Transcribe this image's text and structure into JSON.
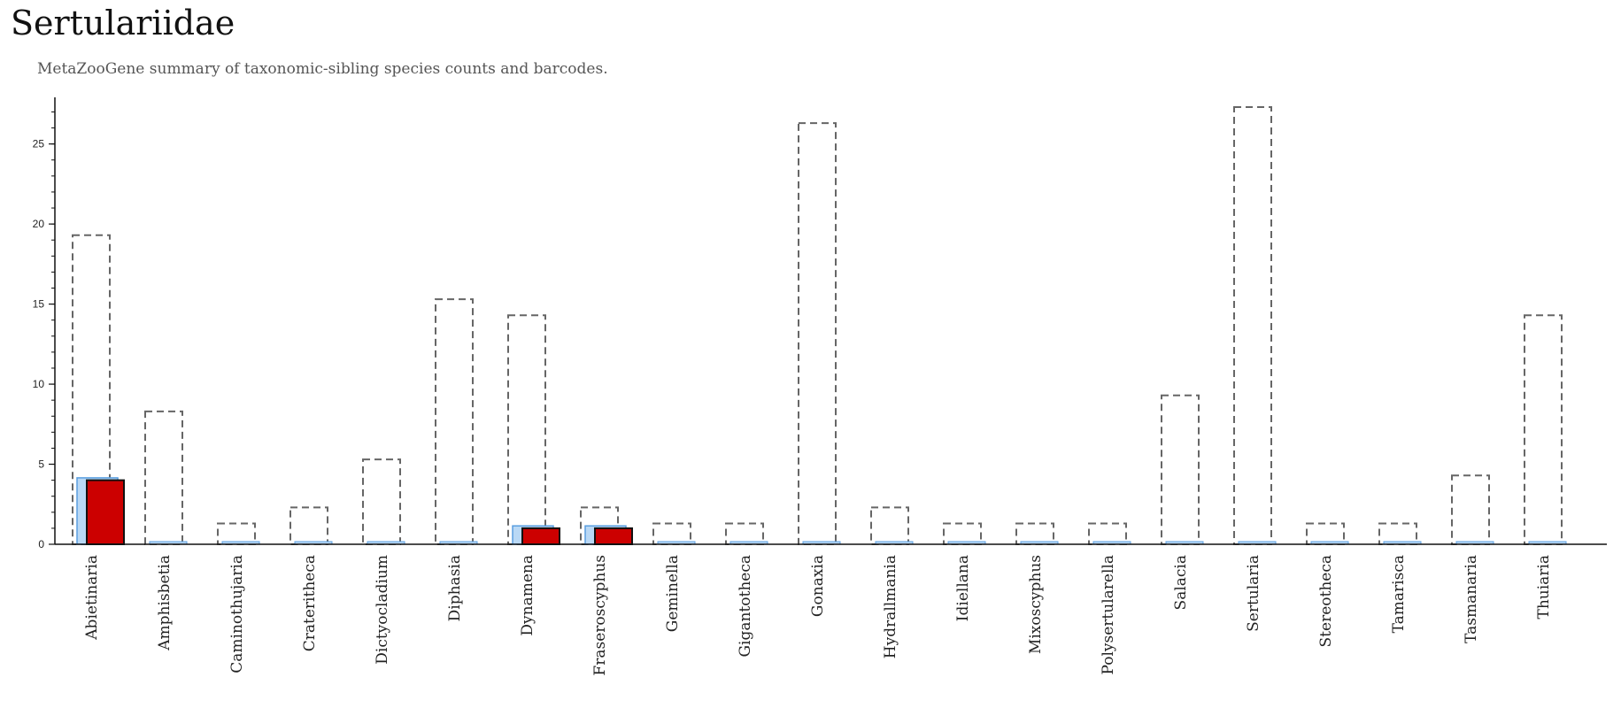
{
  "title": "Sertulariidae",
  "subtitle": "MetaZooGene summary of taxonomic-sibling species counts and barcodes.",
  "colors": {
    "outline": "#666666",
    "light_bar_fill": "#b9d8f5",
    "light_bar_stroke": "#5a9ee0",
    "red_bar_fill": "#cc0000",
    "red_bar_stroke": "#111111",
    "axis": "#111111"
  },
  "chart_data": {
    "type": "bar",
    "categories": [
      "Abietinaria",
      "Amphisbetia",
      "Caminothujaria",
      "Crateritheca",
      "Dictyocladium",
      "Diphasia",
      "Dynamena",
      "Fraseroscyphus",
      "Geminella",
      "Gigantotheca",
      "Gonaxia",
      "Hydrallmania",
      "Idiellana",
      "Mixoscyphus",
      "Polysertularella",
      "Salacia",
      "Sertularia",
      "Stereotheca",
      "Tamarisca",
      "Tasmanaria",
      "Thuiaria"
    ],
    "series": [
      {
        "values": [
          19,
          8,
          1,
          2,
          5,
          15,
          14,
          2,
          1,
          1,
          26,
          2,
          1,
          1,
          1,
          9,
          27,
          1,
          1,
          4,
          14
        ]
      },
      {
        "values": [
          4,
          0,
          0,
          0,
          0,
          0,
          1,
          1,
          0,
          0,
          0,
          0,
          0,
          0,
          0,
          0,
          0,
          0,
          0,
          0,
          0
        ]
      },
      {
        "values": [
          4,
          0,
          0,
          0,
          0,
          0,
          1,
          1,
          0,
          0,
          0,
          0,
          0,
          0,
          0,
          0,
          0,
          0,
          0,
          0,
          0
        ]
      }
    ],
    "yticks": [
      0,
      5,
      10,
      15,
      20,
      25
    ],
    "ylim": [
      0,
      27.8
    ],
    "grid": false,
    "legend": "none"
  }
}
